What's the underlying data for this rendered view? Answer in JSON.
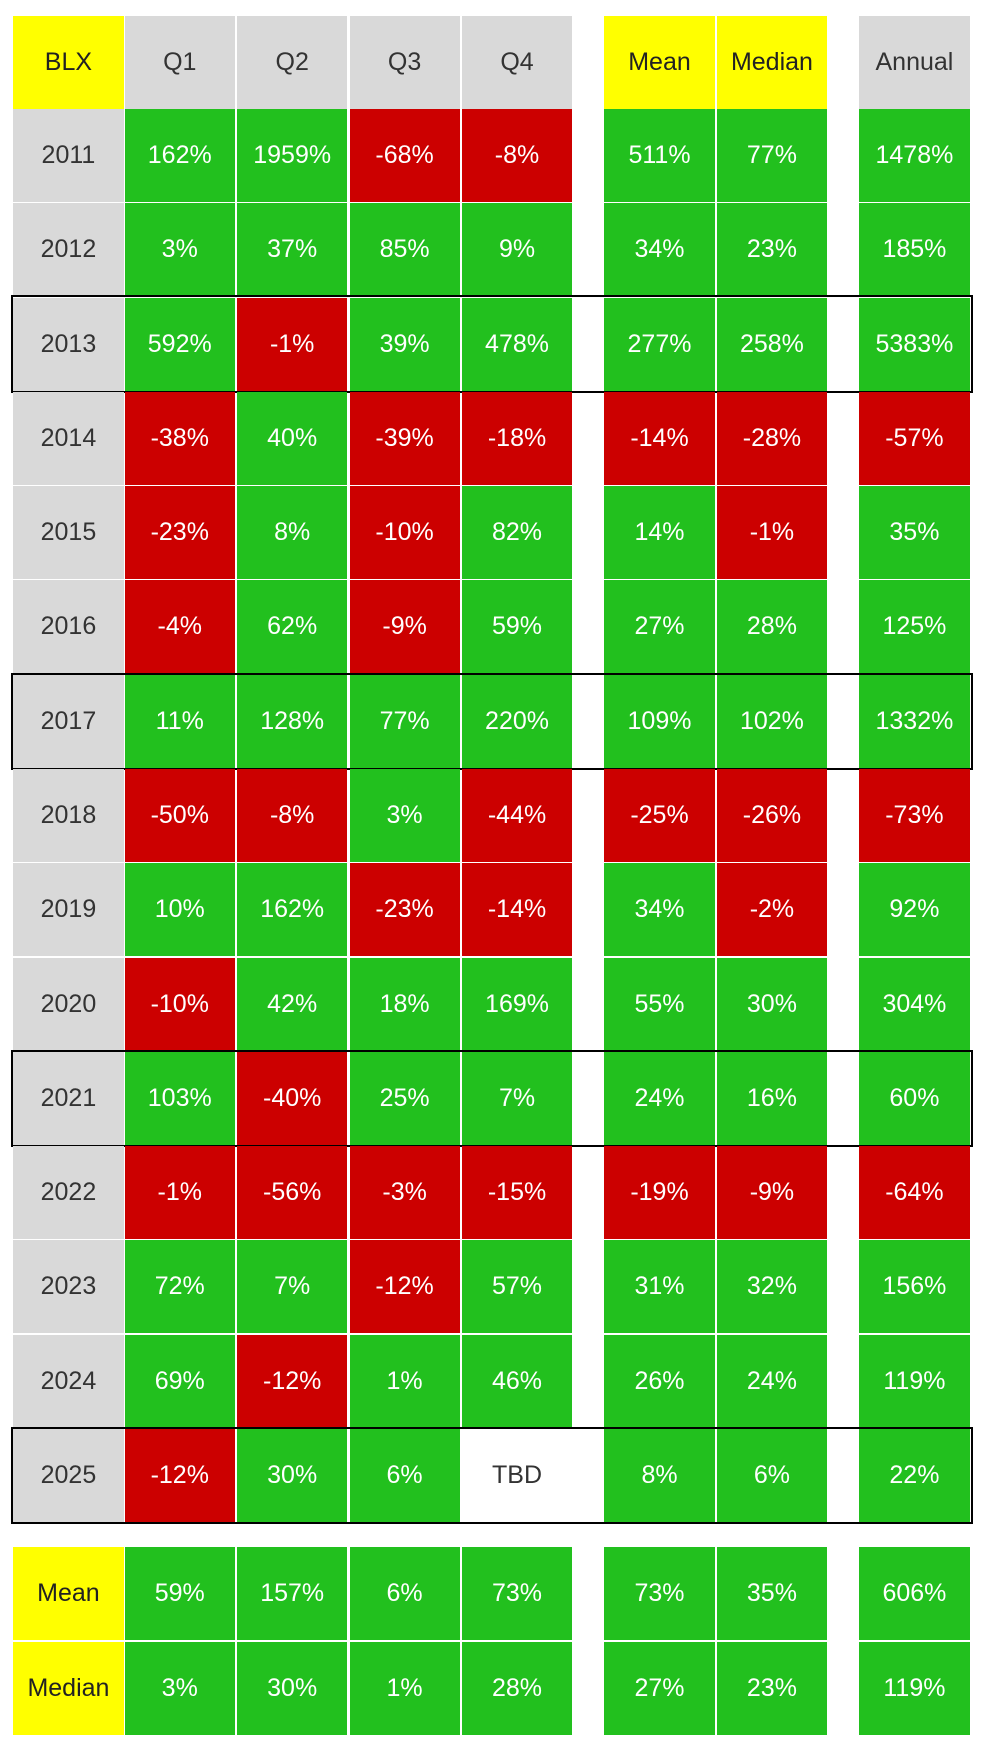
{
  "header": [
    "BLX",
    "Q1",
    "Q2",
    "Q3",
    "Q4",
    "Mean",
    "Median",
    "Annual"
  ],
  "rows": [
    {
      "year": "2011",
      "highlight": false,
      "cells": [
        "162%",
        "1959%",
        "-68%",
        "-8%",
        "511%",
        "77%",
        "1478%"
      ]
    },
    {
      "year": "2012",
      "highlight": false,
      "cells": [
        "3%",
        "37%",
        "85%",
        "9%",
        "34%",
        "23%",
        "185%"
      ]
    },
    {
      "year": "2013",
      "highlight": true,
      "cells": [
        "592%",
        "-1%",
        "39%",
        "478%",
        "277%",
        "258%",
        "5383%"
      ]
    },
    {
      "year": "2014",
      "highlight": false,
      "cells": [
        "-38%",
        "40%",
        "-39%",
        "-18%",
        "-14%",
        "-28%",
        "-57%"
      ]
    },
    {
      "year": "2015",
      "highlight": false,
      "cells": [
        "-23%",
        "8%",
        "-10%",
        "82%",
        "14%",
        "-1%",
        "35%"
      ]
    },
    {
      "year": "2016",
      "highlight": false,
      "cells": [
        "-4%",
        "62%",
        "-9%",
        "59%",
        "27%",
        "28%",
        "125%"
      ]
    },
    {
      "year": "2017",
      "highlight": true,
      "cells": [
        "11%",
        "128%",
        "77%",
        "220%",
        "109%",
        "102%",
        "1332%"
      ]
    },
    {
      "year": "2018",
      "highlight": false,
      "cells": [
        "-50%",
        "-8%",
        "3%",
        "-44%",
        "-25%",
        "-26%",
        "-73%"
      ]
    },
    {
      "year": "2019",
      "highlight": false,
      "cells": [
        "10%",
        "162%",
        "-23%",
        "-14%",
        "34%",
        "-2%",
        "92%"
      ]
    },
    {
      "year": "2020",
      "highlight": false,
      "cells": [
        "-10%",
        "42%",
        "18%",
        "169%",
        "55%",
        "30%",
        "304%"
      ]
    },
    {
      "year": "2021",
      "highlight": true,
      "cells": [
        "103%",
        "-40%",
        "25%",
        "7%",
        "24%",
        "16%",
        "60%"
      ]
    },
    {
      "year": "2022",
      "highlight": false,
      "cells": [
        "-1%",
        "-56%",
        "-3%",
        "-15%",
        "-19%",
        "-9%",
        "-64%"
      ]
    },
    {
      "year": "2023",
      "highlight": false,
      "cells": [
        "72%",
        "7%",
        "-12%",
        "57%",
        "31%",
        "32%",
        "156%"
      ]
    },
    {
      "year": "2024",
      "highlight": false,
      "cells": [
        "69%",
        "-12%",
        "1%",
        "46%",
        "26%",
        "24%",
        "119%"
      ]
    },
    {
      "year": "2025",
      "highlight": true,
      "cells": [
        "-12%",
        "30%",
        "6%",
        "TBD",
        "8%",
        "6%",
        "22%"
      ]
    }
  ],
  "footer": [
    {
      "label": "Mean",
      "cells": [
        "59%",
        "157%",
        "6%",
        "73%",
        "73%",
        "35%",
        "606%"
      ]
    },
    {
      "label": "Median",
      "cells": [
        "3%",
        "30%",
        "1%",
        "28%",
        "27%",
        "23%",
        "119%"
      ]
    }
  ]
}
